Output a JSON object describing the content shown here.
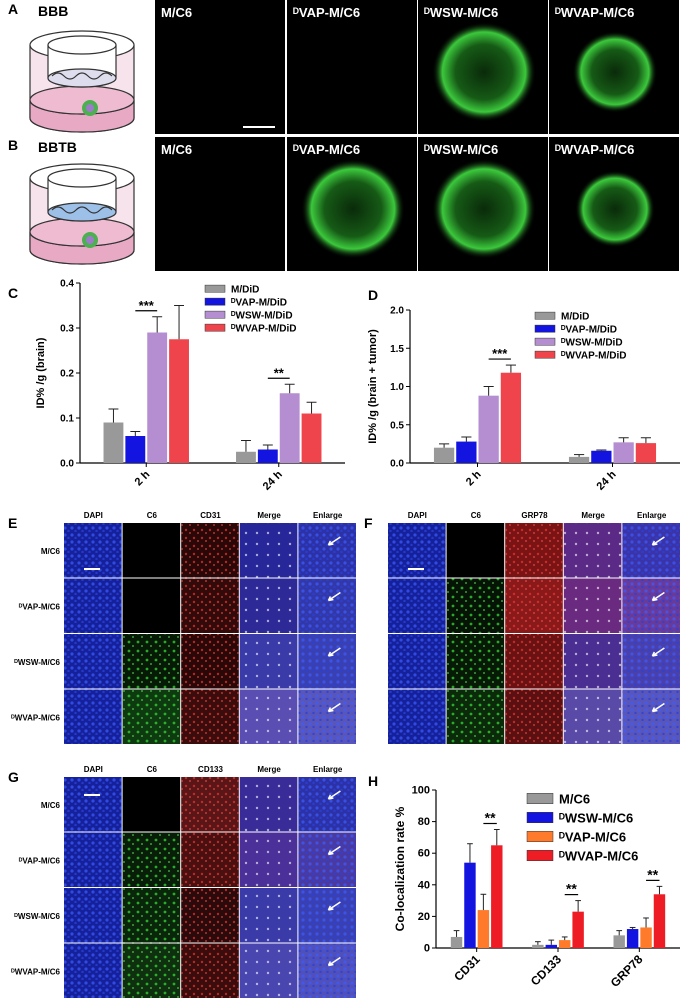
{
  "panels": {
    "A": {
      "label": "A",
      "model": "BBB",
      "images": [
        "M/C6",
        "ᴰVAP-M/C6",
        "ᴰWSW-M/C6",
        "ᴰWVAP-M/C6"
      ]
    },
    "B": {
      "label": "B",
      "model": "BBTB",
      "images": [
        "M/C6",
        "ᴰVAP-M/C6",
        "ᴰWSW-M/C6",
        "ᴰWVAP-M/C6"
      ]
    },
    "E": {
      "label": "E",
      "columns": [
        "DAPI",
        "C6",
        "CD31",
        "Merge",
        "Enlarge"
      ],
      "rows": [
        "M/C6",
        "ᴰVAP-M/C6",
        "ᴰWSW-M/C6",
        "ᴰWVAP-M/C6"
      ]
    },
    "F": {
      "label": "F",
      "columns": [
        "DAPI",
        "C6",
        "GRP78",
        "Merge",
        "Enlarge"
      ]
    },
    "G": {
      "label": "G",
      "columns": [
        "DAPI",
        "C6",
        "CD133",
        "Merge",
        "Enlarge"
      ],
      "rows": [
        "M/C6",
        "ᴰVAP-M/C6",
        "ᴰWSW-M/C6",
        "ᴰWVAP-M/C6"
      ]
    }
  },
  "chart_data": [
    {
      "type": "bar",
      "label": "C",
      "y_label": "ID% /g (brain)",
      "categories": [
        "2 h",
        "24 h"
      ],
      "series": [
        {
          "name": "M/DiD",
          "color": "#999999",
          "values": [
            0.09,
            0.025
          ],
          "errors": [
            0.03,
            0.025
          ]
        },
        {
          "name": "ᴰVAP-M/DiD",
          "color": "#1414e0",
          "values": [
            0.06,
            0.03
          ],
          "errors": [
            0.01,
            0.01
          ]
        },
        {
          "name": "ᴰWSW-M/DiD",
          "color": "#b48ed0",
          "values": [
            0.29,
            0.155
          ],
          "errors": [
            0.035,
            0.02
          ]
        },
        {
          "name": "ᴰWVAP-M/DiD",
          "color": "#f0444c",
          "values": [
            0.275,
            0.11
          ],
          "errors": [
            0.075,
            0.025
          ]
        }
      ],
      "ylim": [
        0,
        0.4
      ],
      "yticks": [
        {
          "value": 0,
          "label": "0.0"
        },
        0.1,
        0.2,
        0.3,
        0.4
      ],
      "annotations": [
        {
          "text": "***"
        },
        {
          "text": "**"
        }
      ]
    },
    {
      "type": "bar",
      "label": "D",
      "y_label": "ID% /g (brain + tumor)",
      "categories": [
        "2 h",
        "24 h"
      ],
      "series": [
        {
          "name": "M/DiD",
          "color": "#999999",
          "values": [
            0.2,
            0.08
          ],
          "errors": [
            0.05,
            0.03
          ]
        },
        {
          "name": "ᴰVAP-M/DiD",
          "color": "#1414e0",
          "values": [
            0.28,
            0.16
          ],
          "errors": [
            0.06,
            0.01
          ]
        },
        {
          "name": "ᴰWSW-M/DiD",
          "color": "#b48ed0",
          "values": [
            0.88,
            0.27
          ],
          "errors": [
            0.12,
            0.06
          ]
        },
        {
          "name": "ᴰWVAP-M/DiD",
          "color": "#f0444c",
          "values": [
            1.18,
            0.26
          ],
          "errors": [
            0.1,
            0.07
          ]
        }
      ],
      "ylim": [
        0,
        2
      ],
      "yticks": [
        {
          "value": 0,
          "label": "0.0"
        },
        0.5,
        {
          "value": 1,
          "label": "1.0"
        },
        1.5,
        {
          "value": 2,
          "label": "2.0"
        }
      ],
      "annotations": [
        {
          "text": "***"
        }
      ]
    },
    {
      "type": "bar",
      "label": "H",
      "y_label": "Co-localization rate %",
      "categories": [
        "CD31",
        "CD133",
        "GRP78"
      ],
      "series": [
        {
          "name": "M/C6",
          "color": "#999999",
          "values": [
            7,
            2,
            8
          ],
          "errors": [
            4,
            2,
            3
          ]
        },
        {
          "name": "ᴰWSW-M/C6",
          "color": "#1414e0",
          "values": [
            54,
            2,
            12
          ],
          "errors": [
            12,
            3,
            1
          ]
        },
        {
          "name": "ᴰVAP-M/C6",
          "color": "#ff7a2a",
          "values": [
            24,
            5,
            13
          ],
          "errors": [
            10,
            2,
            6
          ]
        },
        {
          "name": "ᴰWVAP-M/C6",
          "color": "#ee1c24",
          "values": [
            65,
            23,
            34
          ],
          "errors": [
            10,
            7,
            5
          ]
        }
      ],
      "ylim": [
        0,
        100
      ],
      "yticks": [
        0,
        20,
        40,
        60,
        80,
        100
      ],
      "annotations": [
        {
          "text": "**"
        },
        {
          "text": "**"
        },
        {
          "text": "**"
        }
      ]
    }
  ]
}
